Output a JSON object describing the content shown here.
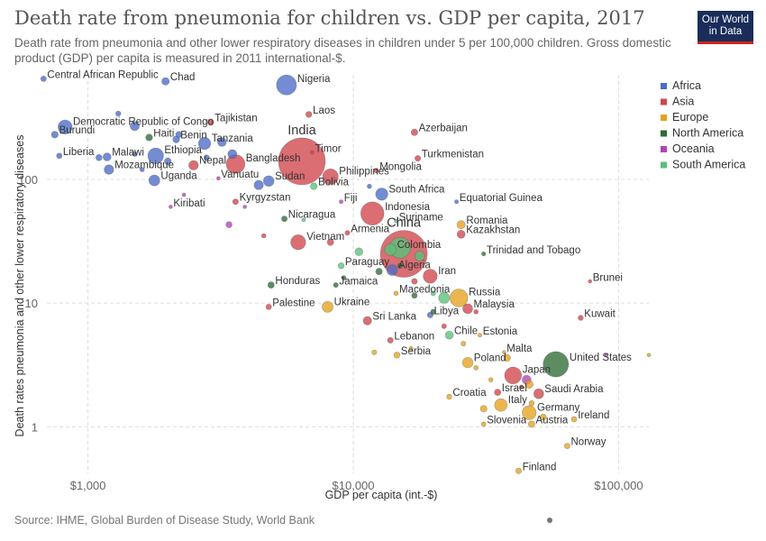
{
  "header": {
    "title": "Death rate from pneumonia for children vs. GDP per capita, 2017",
    "subtitle": "Death rate from pneumonia and other lower respiratory diseases in children under 5 per 100,000 children. Gross domestic product (GDP) per capita is measured in 2011 international-$.",
    "logo_line1": "Our World",
    "logo_line2": "in Data"
  },
  "footer": {
    "source": "Source: IHME, Global Burden of Disease Study, World Bank"
  },
  "colors": {
    "Africa": "#4c6cc6",
    "Asia": "#d0454b",
    "Europe": "#e5a21c",
    "North America": "#2f6b37",
    "Oceania": "#b344b5",
    "South America": "#58c17a"
  },
  "chart_data": {
    "type": "scatter",
    "title": "Death rate from pneumonia for children vs. GDP per capita, 2017",
    "xlabel": "GDP per capita (int.-$)",
    "ylabel": "Death rates pneumonia and other lower respiratory diseases",
    "x_scale": "log",
    "y_scale": "log",
    "xlim": [
      700,
      130000
    ],
    "ylim": [
      0.42,
      700
    ],
    "x_ticks": [
      {
        "v": 1000,
        "label": "$1,000"
      },
      {
        "v": 10000,
        "label": "$10,000"
      },
      {
        "v": 100000,
        "label": "$100,000"
      }
    ],
    "y_ticks": [
      {
        "v": 100,
        "label": "100"
      },
      {
        "v": 10,
        "label": "10"
      },
      {
        "v": 1,
        "label": "1"
      }
    ],
    "legend": [
      "Africa",
      "Asia",
      "Europe",
      "North America",
      "Oceania",
      "South America"
    ],
    "legend_position": "right",
    "grid": true,
    "points": [
      {
        "label": "Central African Republic",
        "region": "Africa",
        "x": 680,
        "y": 650,
        "pop": 5
      },
      {
        "label": "Chad",
        "region": "Africa",
        "x": 1960,
        "y": 620,
        "pop": 15
      },
      {
        "label": "Nigeria",
        "region": "Africa",
        "x": 5600,
        "y": 580,
        "pop": 190
      },
      {
        "label": "Laos",
        "region": "Asia",
        "x": 6800,
        "y": 335,
        "pop": 7
      },
      {
        "label": "Democratic Republic of Congo",
        "region": "Africa",
        "x": 820,
        "y": 265,
        "pop": 81
      },
      {
        "label": "Tajikistan",
        "region": "Asia",
        "x": 2900,
        "y": 290,
        "pop": 9
      },
      {
        "label": "Burundi",
        "region": "Africa",
        "x": 750,
        "y": 230,
        "pop": 11
      },
      {
        "label": "Haiti",
        "region": "North America",
        "x": 1700,
        "y": 218,
        "pop": 11
      },
      {
        "label": "Benin",
        "region": "Africa",
        "x": 2150,
        "y": 210,
        "pop": 11
      },
      {
        "label": "Azerbaijan",
        "region": "Asia",
        "x": 17000,
        "y": 240,
        "pop": 10
      },
      {
        "label": "Tanzania",
        "region": "Africa",
        "x": 2750,
        "y": 195,
        "pop": 57
      },
      {
        "label": "India",
        "region": "Asia",
        "x": 6400,
        "y": 140,
        "pop": 1330
      },
      {
        "label": "Ethiopia",
        "region": "Africa",
        "x": 1800,
        "y": 155,
        "pop": 105
      },
      {
        "label": "Liberia",
        "region": "Africa",
        "x": 780,
        "y": 155,
        "pop": 5
      },
      {
        "label": "Malawi",
        "region": "Africa",
        "x": 1180,
        "y": 152,
        "pop": 18
      },
      {
        "label": "Bangladesh",
        "region": "Asia",
        "x": 3600,
        "y": 133,
        "pop": 160
      },
      {
        "label": "Timor",
        "region": "Asia",
        "x": 7000,
        "y": 165,
        "pop": 1
      },
      {
        "label": "Turkmenistan",
        "region": "Asia",
        "x": 17500,
        "y": 148,
        "pop": 6
      },
      {
        "label": "Mozambique",
        "region": "Africa",
        "x": 1200,
        "y": 120,
        "pop": 29
      },
      {
        "label": "Nepal",
        "region": "Asia",
        "x": 2500,
        "y": 130,
        "pop": 29
      },
      {
        "label": "Mongolia",
        "region": "Asia",
        "x": 12200,
        "y": 118,
        "pop": 3
      },
      {
        "label": "Philippines",
        "region": "Asia",
        "x": 8200,
        "y": 105,
        "pop": 105
      },
      {
        "label": "Uganda",
        "region": "Africa",
        "x": 1780,
        "y": 98,
        "pop": 43
      },
      {
        "label": "Vanuatu",
        "region": "Oceania",
        "x": 3100,
        "y": 102,
        "pop": 0.3
      },
      {
        "label": "Sudan",
        "region": "Africa",
        "x": 4800,
        "y": 97,
        "pop": 40
      },
      {
        "label": "Bolivia",
        "region": "South America",
        "x": 7100,
        "y": 88,
        "pop": 11
      },
      {
        "label": "South Africa",
        "region": "Africa",
        "x": 12800,
        "y": 76,
        "pop": 57
      },
      {
        "label": "Kyrgyzstan",
        "region": "Asia",
        "x": 3600,
        "y": 66,
        "pop": 6
      },
      {
        "label": "Fiji",
        "region": "Oceania",
        "x": 9000,
        "y": 66,
        "pop": 1
      },
      {
        "label": "Equatorial Guinea",
        "region": "Africa",
        "x": 24500,
        "y": 66,
        "pop": 1
      },
      {
        "label": "Kiribati",
        "region": "Oceania",
        "x": 2050,
        "y": 60,
        "pop": 0.1
      },
      {
        "label": "Indonesia",
        "region": "Asia",
        "x": 11800,
        "y": 53,
        "pop": 265
      },
      {
        "label": "Nicaragua",
        "region": "North America",
        "x": 5500,
        "y": 48,
        "pop": 6
      },
      {
        "label": "Suriname",
        "region": "South America",
        "x": 14500,
        "y": 46,
        "pop": 0.6
      },
      {
        "label": "Romania",
        "region": "Europe",
        "x": 25500,
        "y": 43,
        "pop": 20
      },
      {
        "label": "Armenia",
        "region": "Asia",
        "x": 9500,
        "y": 37,
        "pop": 3
      },
      {
        "label": "China",
        "region": "Asia",
        "x": 15500,
        "y": 25,
        "pop": 1386
      },
      {
        "label": "Kazakhstan",
        "region": "Asia",
        "x": 25500,
        "y": 36,
        "pop": 18
      },
      {
        "label": "Vietnam",
        "region": "Asia",
        "x": 6200,
        "y": 31,
        "pop": 95
      },
      {
        "label": "Colombia",
        "region": "South America",
        "x": 13800,
        "y": 27,
        "pop": 49
      },
      {
        "label": "Trinidad and Tobago",
        "region": "North America",
        "x": 31000,
        "y": 25,
        "pop": 1.4
      },
      {
        "label": "Algeria",
        "region": "Africa",
        "x": 14000,
        "y": 18.5,
        "pop": 41
      },
      {
        "label": "Paraguay",
        "region": "South America",
        "x": 9000,
        "y": 20,
        "pop": 7
      },
      {
        "label": "Brunei",
        "region": "Asia",
        "x": 78000,
        "y": 15,
        "pop": 0.4
      },
      {
        "label": "Iran",
        "region": "Asia",
        "x": 19500,
        "y": 16.5,
        "pop": 81
      },
      {
        "label": "Honduras",
        "region": "North America",
        "x": 4900,
        "y": 14,
        "pop": 9
      },
      {
        "label": "Jamaica",
        "region": "North America",
        "x": 8600,
        "y": 14,
        "pop": 3
      },
      {
        "label": "Macedonia",
        "region": "Europe",
        "x": 14500,
        "y": 12,
        "pop": 2
      },
      {
        "label": "Russia",
        "region": "Europe",
        "x": 25000,
        "y": 11,
        "pop": 144
      },
      {
        "label": "Palestine",
        "region": "Asia",
        "x": 4800,
        "y": 9.3,
        "pop": 5
      },
      {
        "label": "Ukraine",
        "region": "Europe",
        "x": 8000,
        "y": 9.3,
        "pop": 44
      },
      {
        "label": "Malaysia",
        "region": "Asia",
        "x": 27000,
        "y": 9,
        "pop": 32
      },
      {
        "label": "Libya",
        "region": "Africa",
        "x": 19500,
        "y": 8,
        "pop": 6
      },
      {
        "label": "Kuwait",
        "region": "Asia",
        "x": 72000,
        "y": 7.6,
        "pop": 4
      },
      {
        "label": "Sri Lanka",
        "region": "Asia",
        "x": 11300,
        "y": 7.2,
        "pop": 21
      },
      {
        "label": "Chile",
        "region": "South America",
        "x": 23000,
        "y": 5.5,
        "pop": 18
      },
      {
        "label": "Estonia",
        "region": "Europe",
        "x": 30000,
        "y": 5.5,
        "pop": 1.3
      },
      {
        "label": "Lebanon",
        "region": "Asia",
        "x": 13800,
        "y": 5,
        "pop": 6
      },
      {
        "label": "Malta",
        "region": "Europe",
        "x": 37000,
        "y": 4,
        "pop": 0.4
      },
      {
        "label": "Serbia",
        "region": "Europe",
        "x": 14600,
        "y": 3.8,
        "pop": 7
      },
      {
        "label": "United States",
        "region": "North America",
        "x": 58000,
        "y": 3.2,
        "pop": 325
      },
      {
        "label": "Poland",
        "region": "Europe",
        "x": 27000,
        "y": 3.3,
        "pop": 38
      },
      {
        "label": "Japan",
        "region": "Asia",
        "x": 40000,
        "y": 2.6,
        "pop": 127
      },
      {
        "label": "Saudi Arabia",
        "region": "Asia",
        "x": 50000,
        "y": 1.85,
        "pop": 33
      },
      {
        "label": "Israel",
        "region": "Asia",
        "x": 35000,
        "y": 1.9,
        "pop": 9
      },
      {
        "label": "Croatia",
        "region": "Europe",
        "x": 23000,
        "y": 1.75,
        "pop": 4
      },
      {
        "label": "Italy",
        "region": "Europe",
        "x": 36000,
        "y": 1.5,
        "pop": 61
      },
      {
        "label": "Germany",
        "region": "Europe",
        "x": 46000,
        "y": 1.3,
        "pop": 82
      },
      {
        "label": "Ireland",
        "region": "Europe",
        "x": 68000,
        "y": 1.15,
        "pop": 5
      },
      {
        "label": "Slovenia",
        "region": "Europe",
        "x": 31000,
        "y": 1.05,
        "pop": 2
      },
      {
        "label": "Austria",
        "region": "Europe",
        "x": 47000,
        "y": 1.05,
        "pop": 9
      },
      {
        "label": "Norway",
        "region": "Europe",
        "x": 64000,
        "y": 0.7,
        "pop": 5
      },
      {
        "label": "Finland",
        "region": "Europe",
        "x": 42000,
        "y": 0.44,
        "pop": 6
      },
      {
        "region": "Africa",
        "x": 1500,
        "y": 270,
        "pop": 26
      },
      {
        "region": "Africa",
        "x": 1300,
        "y": 340,
        "pop": 4
      },
      {
        "region": "Africa",
        "x": 2200,
        "y": 230,
        "pop": 8
      },
      {
        "region": "Africa",
        "x": 3200,
        "y": 200,
        "pop": 24
      },
      {
        "region": "Africa",
        "x": 1500,
        "y": 160,
        "pop": 3
      },
      {
        "region": "Africa",
        "x": 1100,
        "y": 150,
        "pop": 8
      },
      {
        "region": "Africa",
        "x": 2000,
        "y": 140,
        "pop": 11
      },
      {
        "region": "Africa",
        "x": 4400,
        "y": 90,
        "pop": 28
      },
      {
        "region": "Africa",
        "x": 3500,
        "y": 160,
        "pop": 25
      },
      {
        "region": "Africa",
        "x": 11500,
        "y": 88,
        "pop": 2
      },
      {
        "region": "Africa",
        "x": 2800,
        "y": 150,
        "pop": 5
      },
      {
        "region": "Africa",
        "x": 1600,
        "y": 120,
        "pop": 2
      },
      {
        "region": "Asia",
        "x": 4600,
        "y": 35,
        "pop": 2
      },
      {
        "region": "Asia",
        "x": 8200,
        "y": 31,
        "pop": 9
      },
      {
        "region": "Asia",
        "x": 22000,
        "y": 6.5,
        "pop": 3
      },
      {
        "region": "Asia",
        "x": 17000,
        "y": 15,
        "pop": 6
      },
      {
        "region": "Asia",
        "x": 29000,
        "y": 8.5,
        "pop": 2
      },
      {
        "region": "Asia",
        "x": 43000,
        "y": 2.1,
        "pop": 1
      },
      {
        "region": "Europe",
        "x": 12000,
        "y": 4,
        "pop": 3
      },
      {
        "region": "Europe",
        "x": 16500,
        "y": 4.3,
        "pop": 1
      },
      {
        "region": "Europe",
        "x": 26000,
        "y": 4.7,
        "pop": 3
      },
      {
        "region": "Europe",
        "x": 29000,
        "y": 3,
        "pop": 2
      },
      {
        "region": "Europe",
        "x": 33000,
        "y": 2.4,
        "pop": 1.5
      },
      {
        "region": "Europe",
        "x": 38000,
        "y": 3.6,
        "pop": 11
      },
      {
        "region": "Europe",
        "x": 47000,
        "y": 1.55,
        "pop": 4
      },
      {
        "region": "Europe",
        "x": 52000,
        "y": 1.2,
        "pop": 8
      },
      {
        "region": "Europe",
        "x": 130000,
        "y": 3.8,
        "pop": 0.6
      },
      {
        "region": "Europe",
        "x": 46000,
        "y": 2.2,
        "pop": 17
      },
      {
        "region": "Europe",
        "x": 31000,
        "y": 1.4,
        "pop": 10
      },
      {
        "region": "North America",
        "x": 15000,
        "y": 20,
        "pop": 4
      },
      {
        "region": "North America",
        "x": 12500,
        "y": 18,
        "pop": 10
      },
      {
        "region": "North America",
        "x": 9200,
        "y": 16,
        "pop": 2
      },
      {
        "region": "North America",
        "x": 17000,
        "y": 11.5,
        "pop": 5
      },
      {
        "region": "North America",
        "x": 20000,
        "y": 8.5,
        "pop": 4
      },
      {
        "region": "Oceania",
        "x": 2300,
        "y": 75,
        "pop": 0.2
      },
      {
        "region": "Oceania",
        "x": 3400,
        "y": 43,
        "pop": 8
      },
      {
        "region": "Oceania",
        "x": 3900,
        "y": 60,
        "pop": 0.6
      },
      {
        "region": "Oceania",
        "x": 45000,
        "y": 2.4,
        "pop": 25
      },
      {
        "region": "Oceania",
        "x": 90000,
        "y": 3.8,
        "pop": 0.2
      },
      {
        "region": "South America",
        "x": 17800,
        "y": 24,
        "pop": 32
      },
      {
        "region": "South America",
        "x": 6500,
        "y": 47,
        "pop": 0.8
      },
      {
        "region": "South America",
        "x": 20000,
        "y": 12,
        "pop": 3
      },
      {
        "region": "South America",
        "x": 22000,
        "y": 11,
        "pop": 44
      },
      {
        "region": "South America",
        "x": 15000,
        "y": 28,
        "pop": 209
      },
      {
        "region": "South America",
        "x": 10500,
        "y": 26,
        "pop": 17
      }
    ]
  }
}
